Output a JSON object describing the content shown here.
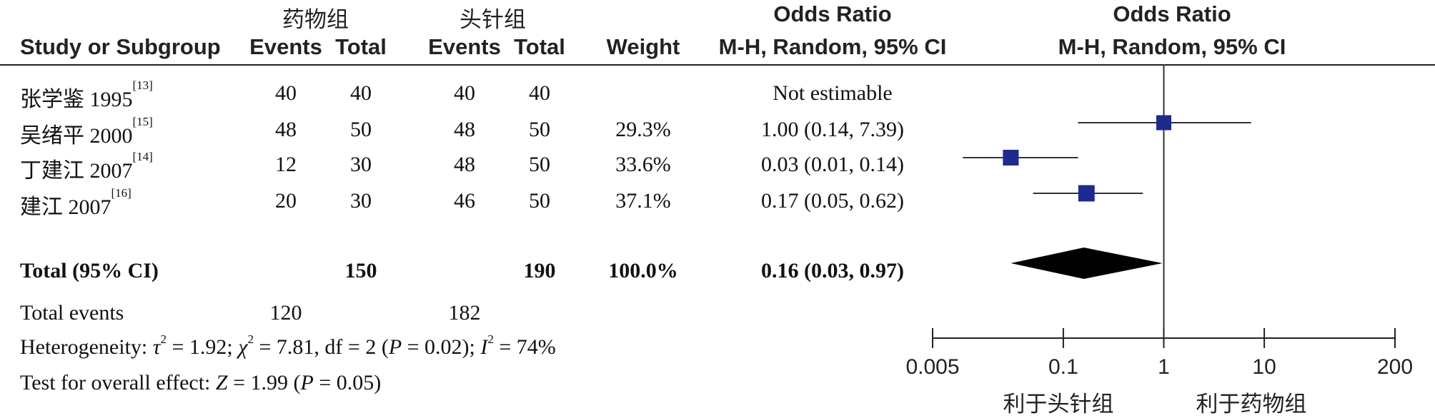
{
  "groups": {
    "experimental": "药物组",
    "control": "头针组"
  },
  "headers": {
    "study": "Study or Subgroup",
    "events": "Events",
    "total": "Total",
    "weight": "Weight",
    "or_title": "Odds Ratio",
    "or_method": "M-H, Random, 95% CI",
    "plot_title": "Odds Ratio",
    "plot_method": "M-H, Random, 95% CI"
  },
  "studies": [
    {
      "name": "张学鉴 1995",
      "ref": "[13]",
      "exp_events": "40",
      "exp_total": "40",
      "ctrl_events": "40",
      "ctrl_total": "40",
      "weight": "",
      "ci_text": "Not estimable"
    },
    {
      "name": "吴绪平 2000",
      "ref": "[15]",
      "exp_events": "48",
      "exp_total": "50",
      "ctrl_events": "48",
      "ctrl_total": "50",
      "weight": "29.3%",
      "ci_text": "1.00 (0.14, 7.39)"
    },
    {
      "name": "丁建江 2007",
      "ref": "[14]",
      "exp_events": "12",
      "exp_total": "30",
      "ctrl_events": "48",
      "ctrl_total": "50",
      "weight": "33.6%",
      "ci_text": "0.03 (0.01, 0.14)"
    },
    {
      "name": "建江 2007",
      "ref": "[16]",
      "exp_events": "20",
      "exp_total": "30",
      "ctrl_events": "46",
      "ctrl_total": "50",
      "weight": "37.1%",
      "ci_text": "0.17 (0.05, 0.62)"
    }
  ],
  "total": {
    "label": "Total (95% CI)",
    "exp_total": "150",
    "ctrl_total": "190",
    "weight": "100.0%",
    "ci_text": "0.16 (0.03, 0.97)"
  },
  "total_events": {
    "label": "Total events",
    "exp": "120",
    "ctrl": "182"
  },
  "heterogeneity": {
    "prefix": "Heterogeneity: ",
    "tau_sym": "τ",
    "tau_val": " = 1.92; ",
    "chi_sym": "χ",
    "chi_val": " = 7.81, df = 2 (",
    "p_sym": "P",
    "p_val": " = 0.02); ",
    "i_sym": "I",
    "i_val": " = 74%",
    "sq": "2"
  },
  "overall": {
    "prefix": "Test for overall effect: ",
    "z_sym": "Z",
    "z_val": " = 1.99 (",
    "p_sym": "P",
    "p_val": " = 0.05)"
  },
  "axis": {
    "tick_labels": [
      "0.005",
      "0.1",
      "1",
      "10",
      "200"
    ],
    "favours_left": "利于头针组",
    "favours_right": "利于药物组"
  },
  "chart_data": {
    "type": "forest",
    "scale": "log",
    "xlim": [
      0.005,
      200
    ],
    "ticks": [
      0.005,
      0.1,
      1,
      10,
      200
    ],
    "reference_line": 1,
    "studies": [
      {
        "name": "张学鉴 1995",
        "estimable": false
      },
      {
        "name": "吴绪平 2000",
        "or": 1.0,
        "lower": 0.14,
        "upper": 7.39,
        "weight": 29.3
      },
      {
        "name": "丁建江 2007",
        "or": 0.03,
        "lower": 0.01,
        "upper": 0.14,
        "weight": 33.6
      },
      {
        "name": "建江 2007",
        "or": 0.17,
        "lower": 0.05,
        "upper": 0.62,
        "weight": 37.1
      }
    ],
    "pooled": {
      "or": 0.16,
      "lower": 0.03,
      "upper": 0.97
    },
    "marker_color": "#1f2a8f",
    "diamond_color": "#000000"
  }
}
